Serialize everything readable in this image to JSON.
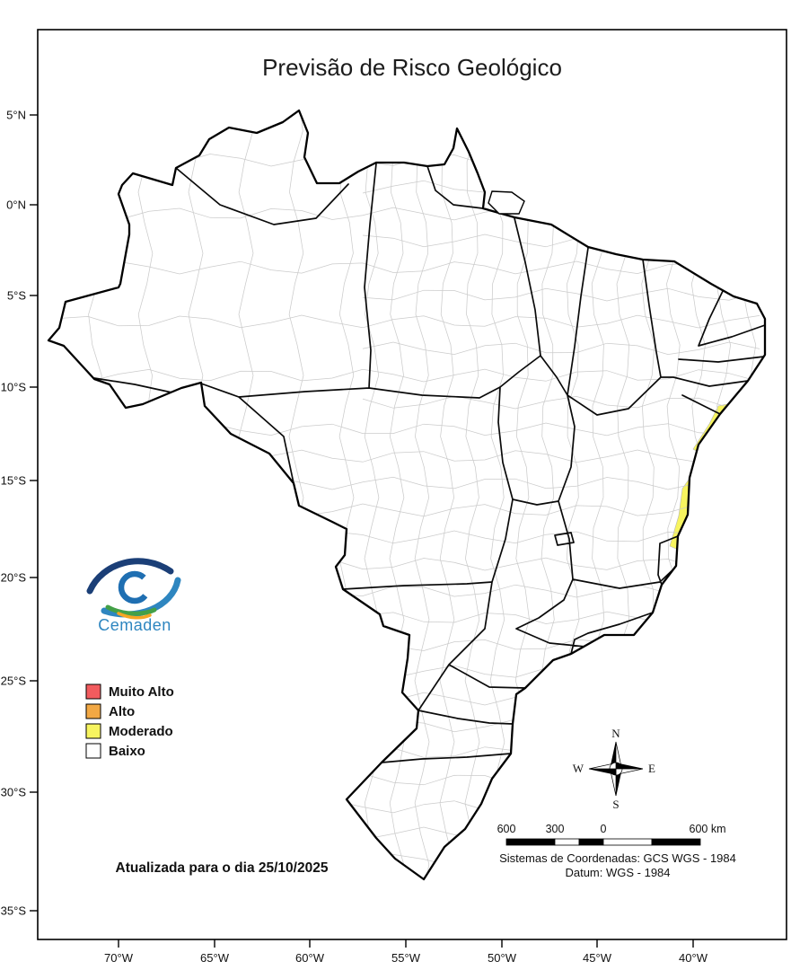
{
  "figure": {
    "title": "Previsão de Risco Geológico"
  },
  "logo": {
    "wordmark": "Cemaden"
  },
  "legend": {
    "items": [
      {
        "id": "muito-alto",
        "label": "Muito Alto",
        "color": "#f25b5e"
      },
      {
        "id": "alto",
        "label": "Alto",
        "color": "#f2a844"
      },
      {
        "id": "moderado",
        "label": "Moderado",
        "color": "#f7f45f"
      },
      {
        "id": "baixo",
        "label": "Baixo",
        "color": "#ffffff"
      }
    ]
  },
  "map": {
    "highlighted_regions": [
      {
        "name": "litoral-nordeste",
        "risk": "Moderado"
      },
      {
        "name": "litoral-sul-bahia",
        "risk": "Moderado"
      }
    ]
  },
  "updated_label": "Atualizada para o dia 25/10/2025",
  "axes": {
    "latitude_ticks": [
      "5°N",
      "0°N",
      "5°S",
      "10°S",
      "15°S",
      "20°S",
      "25°S",
      "30°S",
      "35°S"
    ],
    "longitude_ticks": [
      "70°W",
      "65°W",
      "60°W",
      "55°W",
      "50°W",
      "45°W",
      "40°W"
    ]
  },
  "compass": {
    "north": "N",
    "south": "S",
    "east": "E",
    "west": "W"
  },
  "scale_bar": {
    "labels": [
      "600",
      "300",
      "0",
      "600 km"
    ]
  },
  "footer": {
    "coordinate_system": "Sistemas de Coordenadas: GCS WGS - 1984",
    "datum": "Datum: WGS - 1984"
  }
}
